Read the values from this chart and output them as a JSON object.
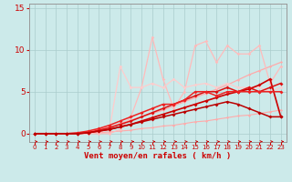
{
  "bg_color": "#cceaea",
  "grid_color": "#bbdddd",
  "axis_color": "#999999",
  "xlabel": "Vent moyen/en rafales ( km/h )",
  "xlabel_color": "#cc0000",
  "tick_color": "#cc0000",
  "xlim": [
    -0.5,
    23.5
  ],
  "ylim": [
    -1.0,
    15.5
  ],
  "yticks": [
    0,
    5,
    10,
    15
  ],
  "xticks": [
    0,
    1,
    2,
    3,
    4,
    5,
    6,
    7,
    8,
    9,
    10,
    11,
    12,
    13,
    14,
    15,
    16,
    17,
    18,
    19,
    20,
    21,
    22,
    23
  ],
  "series": [
    {
      "x": [
        0,
        1,
        2,
        3,
        4,
        5,
        6,
        7,
        8,
        9,
        10,
        11,
        12,
        13,
        14,
        15,
        16,
        17,
        18,
        19,
        20,
        21,
        22,
        23
      ],
      "y": [
        0,
        0,
        0,
        0,
        0,
        0,
        0.1,
        0.2,
        0.3,
        0.4,
        0.6,
        0.7,
        0.9,
        1.0,
        1.2,
        1.4,
        1.5,
        1.7,
        1.9,
        2.1,
        2.2,
        2.4,
        2.6,
        2.8
      ],
      "color": "#ffaaaa",
      "lw": 0.8,
      "marker": "D",
      "ms": 1.5
    },
    {
      "x": [
        0,
        1,
        2,
        3,
        4,
        5,
        6,
        7,
        8,
        9,
        10,
        11,
        12,
        13,
        14,
        15,
        16,
        17,
        18,
        19,
        20,
        21,
        22,
        23
      ],
      "y": [
        0,
        0,
        0,
        0,
        0,
        0.2,
        0.5,
        0.8,
        1.2,
        1.6,
        2.0,
        2.4,
        2.8,
        3.3,
        3.8,
        4.3,
        4.8,
        5.3,
        5.8,
        6.4,
        7.0,
        7.5,
        8.0,
        8.5
      ],
      "color": "#ffaaaa",
      "lw": 0.9,
      "marker": "D",
      "ms": 1.5
    },
    {
      "x": [
        0,
        1,
        2,
        3,
        4,
        5,
        6,
        7,
        8,
        9,
        10,
        11,
        12,
        13,
        14,
        15,
        16,
        17,
        18,
        19,
        20,
        21,
        22,
        23
      ],
      "y": [
        0,
        0,
        0,
        0,
        0,
        0,
        0,
        0,
        0.5,
        2.0,
        5.5,
        11.5,
        6.5,
        3.0,
        5.0,
        10.5,
        11.0,
        8.5,
        10.5,
        9.5,
        9.5,
        10.5,
        6.0,
        8.0
      ],
      "color": "#ffbbbb",
      "lw": 0.9,
      "marker": "D",
      "ms": 1.8
    },
    {
      "x": [
        0,
        1,
        2,
        3,
        4,
        5,
        6,
        7,
        8,
        9,
        10,
        11,
        12,
        13,
        14,
        15,
        16,
        17,
        18,
        19,
        20,
        21,
        22,
        23
      ],
      "y": [
        0,
        0,
        0,
        0,
        0,
        0,
        0.2,
        0.5,
        8.0,
        5.5,
        5.5,
        6.0,
        5.5,
        6.5,
        5.5,
        5.8,
        6.0,
        5.5,
        6.0,
        5.5,
        5.5,
        5.5,
        5.0,
        5.5
      ],
      "color": "#ffcccc",
      "lw": 0.9,
      "marker": "D",
      "ms": 1.8
    },
    {
      "x": [
        0,
        1,
        2,
        3,
        4,
        5,
        6,
        7,
        8,
        9,
        10,
        11,
        12,
        13,
        14,
        15,
        16,
        17,
        18,
        19,
        20,
        21,
        22,
        23
      ],
      "y": [
        0,
        0,
        0,
        0,
        0,
        0.1,
        0.3,
        0.5,
        0.8,
        1.1,
        1.5,
        1.9,
        2.3,
        2.7,
        3.1,
        3.5,
        3.9,
        4.3,
        4.7,
        5.0,
        5.3,
        5.8,
        6.5,
        2.0
      ],
      "color": "#cc0000",
      "lw": 1.2,
      "marker": "D",
      "ms": 2.0
    },
    {
      "x": [
        0,
        1,
        2,
        3,
        4,
        5,
        6,
        7,
        8,
        9,
        10,
        11,
        12,
        13,
        14,
        15,
        16,
        17,
        18,
        19,
        20,
        21,
        22,
        23
      ],
      "y": [
        0,
        0,
        0,
        0,
        0,
        0.1,
        0.4,
        0.7,
        1.1,
        1.5,
        2.0,
        2.5,
        3.0,
        3.5,
        4.0,
        4.5,
        5.0,
        5.0,
        5.5,
        5.0,
        5.5,
        5.0,
        5.5,
        6.0
      ],
      "color": "#dd1111",
      "lw": 1.1,
      "marker": "D",
      "ms": 2.0
    },
    {
      "x": [
        0,
        1,
        2,
        3,
        4,
        5,
        6,
        7,
        8,
        9,
        10,
        11,
        12,
        13,
        14,
        15,
        16,
        17,
        18,
        19,
        20,
        21,
        22,
        23
      ],
      "y": [
        0,
        0,
        0,
        0,
        0.1,
        0.3,
        0.6,
        1.0,
        1.5,
        2.0,
        2.5,
        3.0,
        3.5,
        3.5,
        4.0,
        5.0,
        5.0,
        4.5,
        5.0,
        5.0,
        5.0,
        5.0,
        5.0,
        5.0
      ],
      "color": "#ee2222",
      "lw": 1.1,
      "marker": "D",
      "ms": 2.0
    },
    {
      "x": [
        0,
        1,
        2,
        3,
        4,
        5,
        6,
        7,
        8,
        9,
        10,
        11,
        12,
        13,
        14,
        15,
        16,
        17,
        18,
        19,
        20,
        21,
        22,
        23
      ],
      "y": [
        0,
        0,
        0,
        0,
        0,
        0.1,
        0.3,
        0.5,
        0.8,
        1.1,
        1.4,
        1.7,
        2.0,
        2.3,
        2.6,
        2.9,
        3.2,
        3.5,
        3.8,
        3.5,
        3.0,
        2.5,
        2.0,
        2.0
      ],
      "color": "#bb0000",
      "lw": 1.1,
      "marker": "D",
      "ms": 2.0
    }
  ],
  "arrow_color": "#cc0000",
  "xlabel_fontsize": 6.5,
  "ytick_fontsize": 6.5,
  "xtick_fontsize": 5.0
}
